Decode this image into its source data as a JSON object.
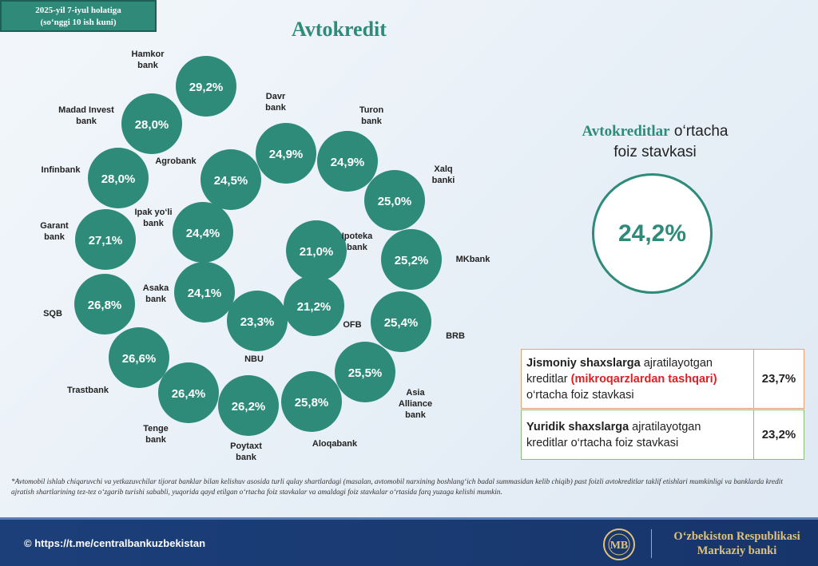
{
  "header": {
    "date_line1": "2025-yil 7-iyul holatiga",
    "date_line2": "(so‘nggi 10 ish kuni)",
    "title": "Avtokredit"
  },
  "colors": {
    "bubble": "#2e8b7a",
    "accent": "#2e8b7a",
    "highlight": "#e02020"
  },
  "chart_data": {
    "type": "bubble",
    "unit": "%",
    "series": [
      {
        "name": "Hamkor bank",
        "value": "29,2%"
      },
      {
        "name": "Madad Invest bank",
        "value": "28,0%"
      },
      {
        "name": "Infinbank",
        "value": "28,0%"
      },
      {
        "name": "Garant bank",
        "value": "27,1%"
      },
      {
        "name": "SQB",
        "value": "26,8%"
      },
      {
        "name": "Trastbank",
        "value": "26,6%"
      },
      {
        "name": "Tenge bank",
        "value": "26,4%"
      },
      {
        "name": "Poytaxt bank",
        "value": "26,2%"
      },
      {
        "name": "Aloqabank",
        "value": "25,8%"
      },
      {
        "name": "Asia Alliance bank",
        "value": "25,5%"
      },
      {
        "name": "BRB",
        "value": "25,4%"
      },
      {
        "name": "MKbank",
        "value": "25,2%"
      },
      {
        "name": "Xalq banki",
        "value": "25,0%"
      },
      {
        "name": "Turon bank",
        "value": "24,9%"
      },
      {
        "name": "Davr bank",
        "value": "24,9%"
      },
      {
        "name": "Agrobank",
        "value": "24,5%"
      },
      {
        "name": "Ipak yo‘li bank",
        "value": "24,4%"
      },
      {
        "name": "Asaka bank",
        "value": "24,1%"
      },
      {
        "name": "NBU",
        "value": "23,3%"
      },
      {
        "name": "OFB",
        "value": "21,2%"
      },
      {
        "name": "Ipoteka bank",
        "value": "21,0%"
      }
    ]
  },
  "average": {
    "title_em": "Avtokreditlar",
    "title_rest1": " o‘rtacha",
    "title_line2": "foiz stavkasi",
    "value": "24,2%"
  },
  "individuals": {
    "bold1": "Jismoniy shaxslarga",
    "text1": " ajratilayotgan",
    "text2": "kreditlar ",
    "red": "(mikroqarzlardan tashqari)",
    "text3": "o‘rtacha foiz stavkasi",
    "value": "23,7%"
  },
  "legal": {
    "bold1": "Yuridik shaxslarga",
    "text1": " ajratilayotgan",
    "text2": "kreditlar o‘rtacha foiz stavkasi",
    "value": "23,2%"
  },
  "footnote": "*Avtomobil ishlab chiqaruvchi va yetkazuvchilar tijorat banklar bilan kelishuv asosida turli qulay shartlardagi (masalan, avtomobil narxining boshlang‘ich badal summasidan kelib chiqib) past foizli avtokreditlar taklif etishlari mumkinligi va banklarda kredit ajratish shartlarining tez-tez o‘zgarib turishi sababli, yuqorida qayd etilgan o‘rtacha foiz stavkalar va amaldagi foiz stavkalar o‘rtasida farq yuzaga kelishi mumkin.",
  "footer": {
    "link": "© https://t.me/centralbankuzbekistan",
    "org_line1": "O‘zbekiston Respublikasi",
    "org_line2": "Markaziy banki",
    "logo_text": "MB"
  }
}
